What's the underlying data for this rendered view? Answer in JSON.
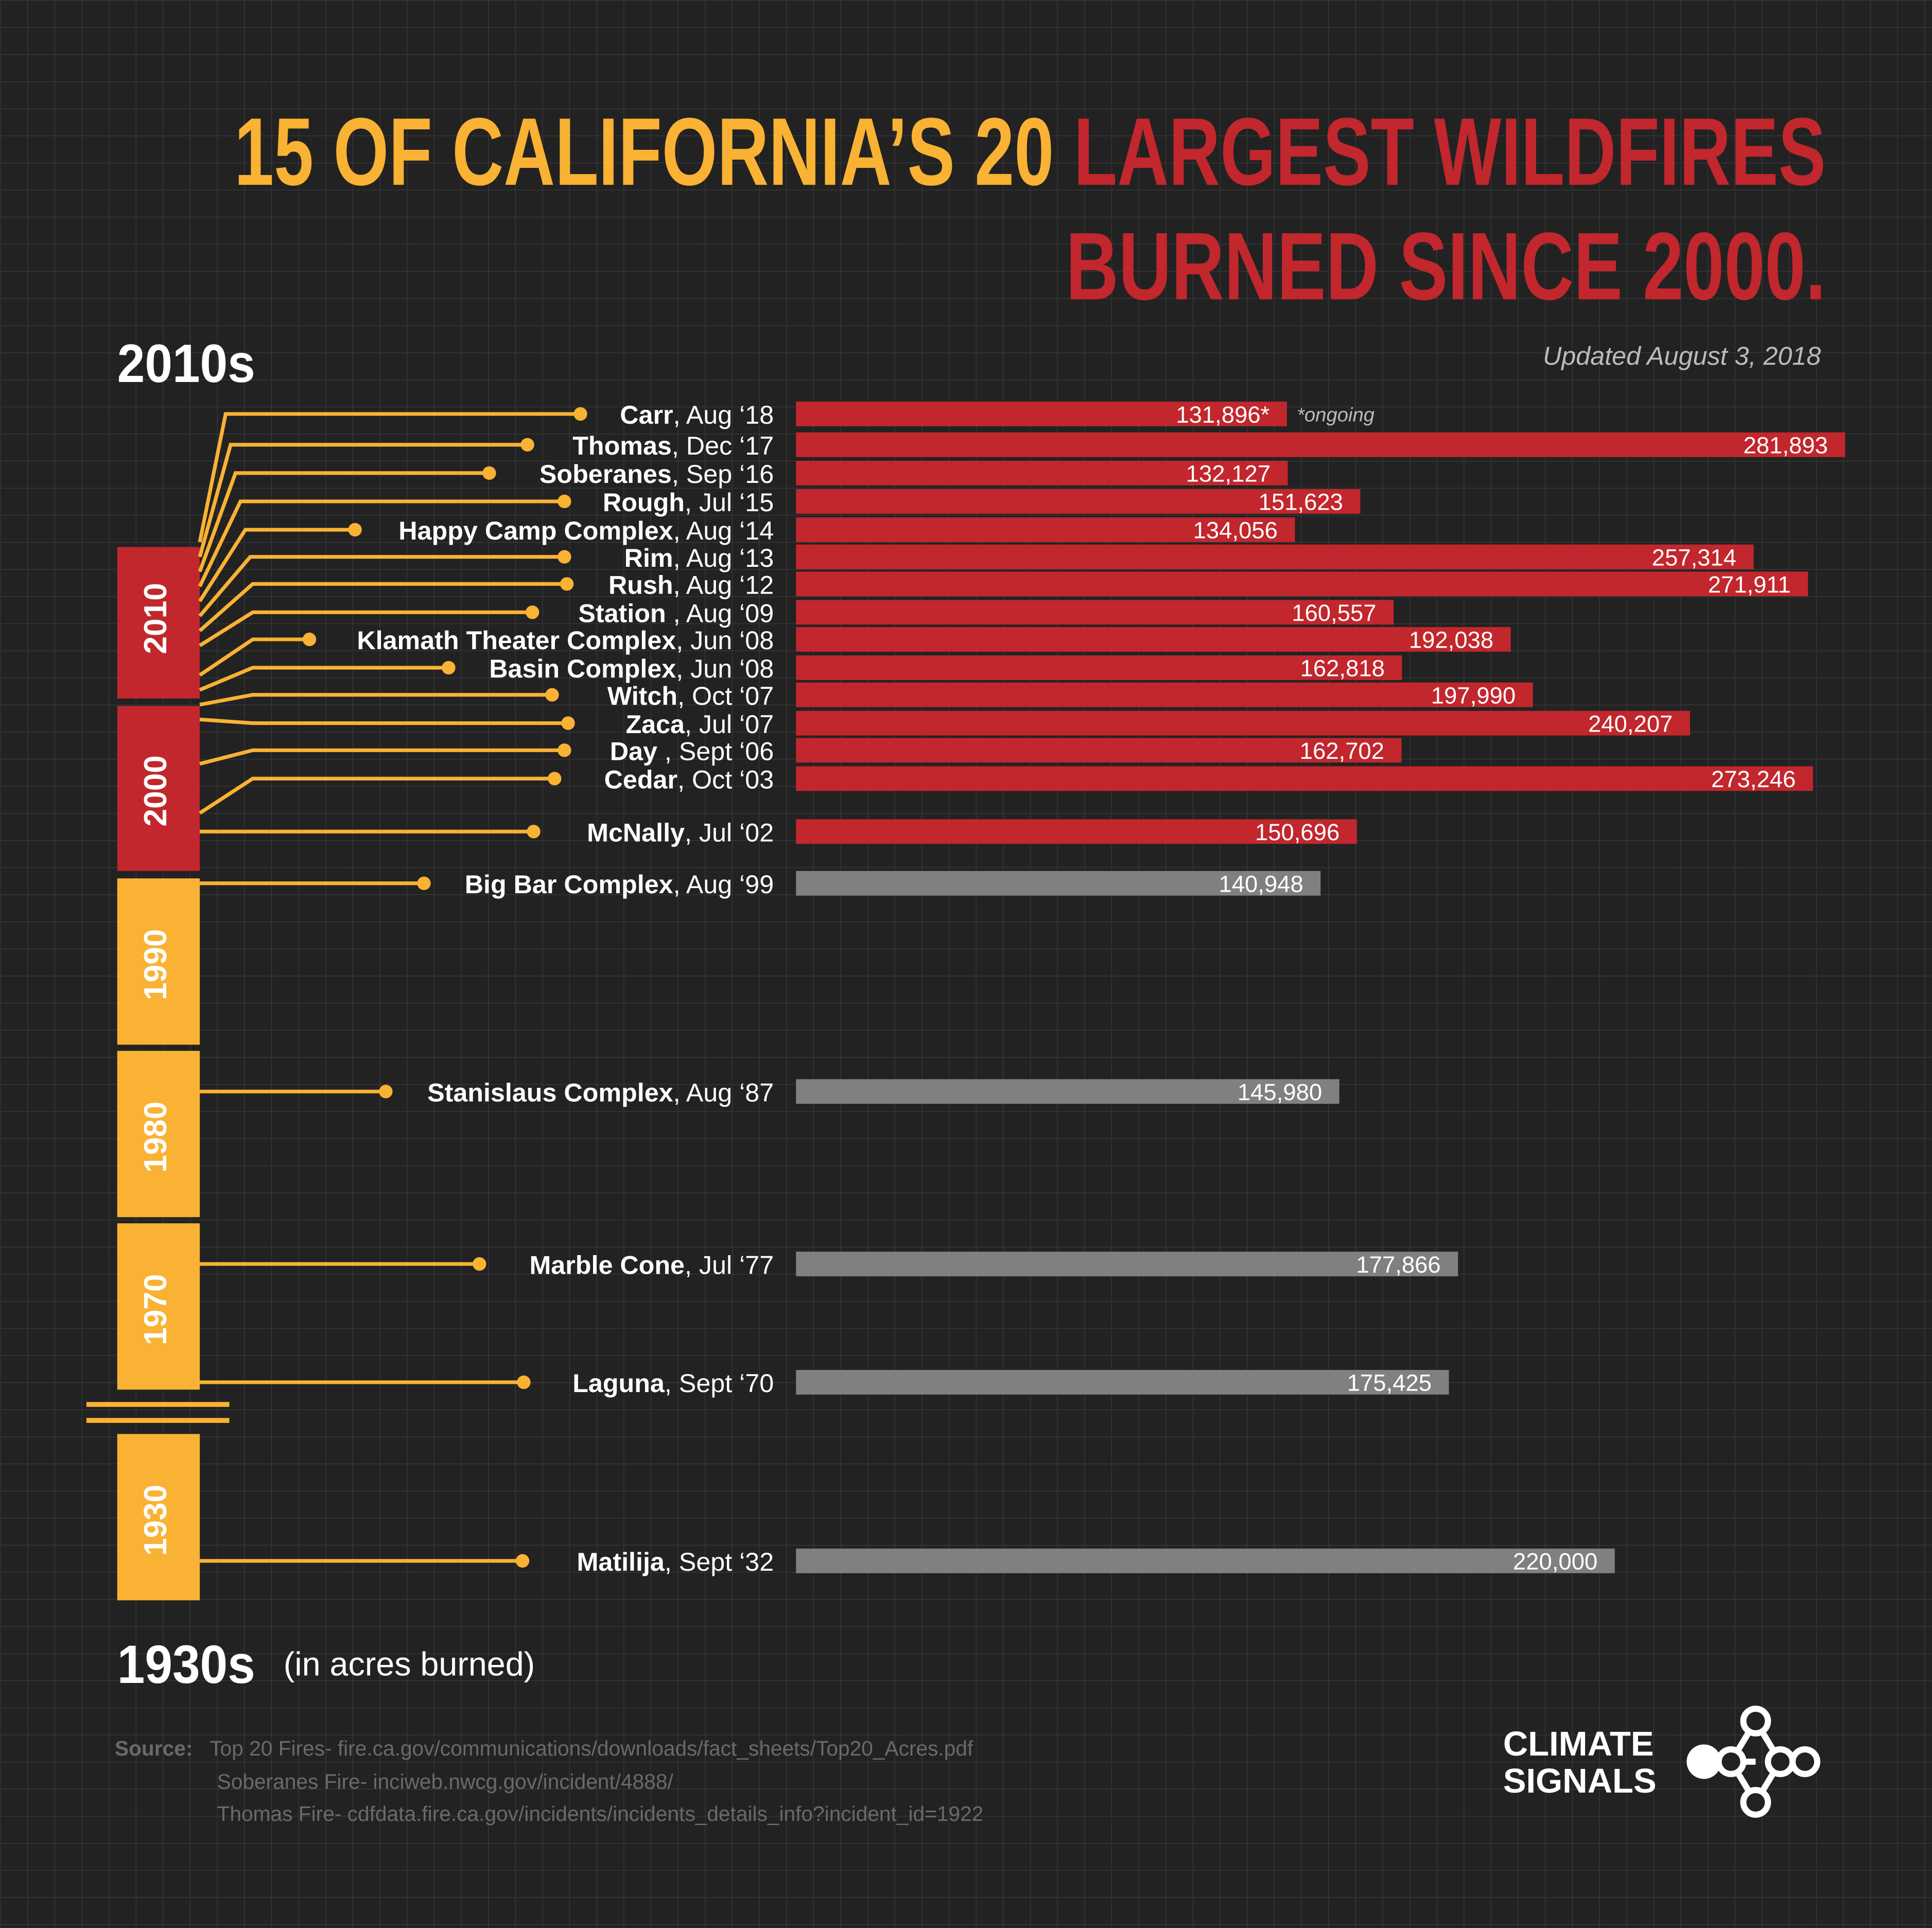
{
  "chart_data": {
    "type": "bar",
    "title_parts": [
      "15 OF CALIFORNIA’S 20 ",
      "LARGEST WILDFIRES",
      "BURNED SINCE 2000."
    ],
    "title_colors": [
      "#f9b233",
      "#c1272d",
      "#c1272d"
    ],
    "updated": "Updated August 3, 2018",
    "top_label": "2010s",
    "bottom_label": "1930s",
    "unit_label": "(in acres burned)",
    "annotation": "*ongoing",
    "categories": [
      "Carr",
      "Thomas",
      "Soberanes",
      "Rough",
      "Happy Camp Complex",
      "Rim",
      "Rush",
      "Station",
      "Klamath Theater Complex",
      "Basin Complex",
      "Witch",
      "Zaca",
      "Day",
      "Cedar",
      "McNally",
      "Big Bar Complex",
      "Stanislaus Complex",
      "Marble Cone",
      "Laguna",
      "Matilija"
    ],
    "dates": [
      ", Aug ‘18",
      ", Dec ‘17",
      ", Sep ‘16",
      ", Jul ‘15",
      ", Aug ‘14",
      ", Aug ‘13",
      ", Aug ‘12",
      " , Aug ‘09",
      ", Jun ‘08",
      ", Jun ‘08",
      ", Oct ‘07",
      ", Jul ‘07",
      " , Sept ‘06",
      ", Oct ‘03",
      ", Jul ‘02",
      ", Aug ‘99",
      ", Aug ‘87",
      ", Jul ‘77",
      ", Sept ‘70",
      ", Sept ‘32"
    ],
    "values": [
      131896,
      281893,
      132127,
      151623,
      134056,
      257314,
      271911,
      160557,
      192038,
      162818,
      197990,
      240207,
      162702,
      273246,
      150696,
      140948,
      145980,
      177866,
      175425,
      220000
    ],
    "value_labels": [
      "131,896*",
      "281,893",
      "132,127",
      "151,623",
      "134,056",
      "257,314",
      "271,911",
      "160,557",
      "192,038",
      "162,818",
      "197,990",
      "240,207",
      "162,702",
      "273,246",
      "150,696",
      "140,948",
      "145,980",
      "177,866",
      "175,425",
      "220,000"
    ],
    "colors": [
      "#c1272d",
      "#c1272d",
      "#c1272d",
      "#c1272d",
      "#c1272d",
      "#c1272d",
      "#c1272d",
      "#c1272d",
      "#c1272d",
      "#c1272d",
      "#c1272d",
      "#c1272d",
      "#c1272d",
      "#c1272d",
      "#c1272d",
      "#808080",
      "#808080",
      "#808080",
      "#808080",
      "#808080"
    ],
    "xlim": [
      0,
      282000
    ],
    "decades": [
      "2010",
      "2000",
      "1990",
      "1980",
      "1970",
      "1930"
    ],
    "decade_colors": [
      "#c1272d",
      "#c1272d",
      "#f9b233",
      "#f9b233",
      "#f9b233",
      "#f9b233"
    ],
    "connector_color": "#f9b233"
  },
  "source": {
    "label": "Source:",
    "lines": [
      "Top 20 Fires- fire.ca.gov/communications/downloads/fact_sheets/Top20_Acres.pdf",
      "Soberanes Fire- inciweb.nwcg.gov/incident/4888/",
      "Thomas Fire- cdfdata.fire.ca.gov/incidents/incidents_details_info?incident_id=1922"
    ]
  },
  "logo": {
    "line1": "CLIMATE",
    "line2": "SIGNALS"
  }
}
